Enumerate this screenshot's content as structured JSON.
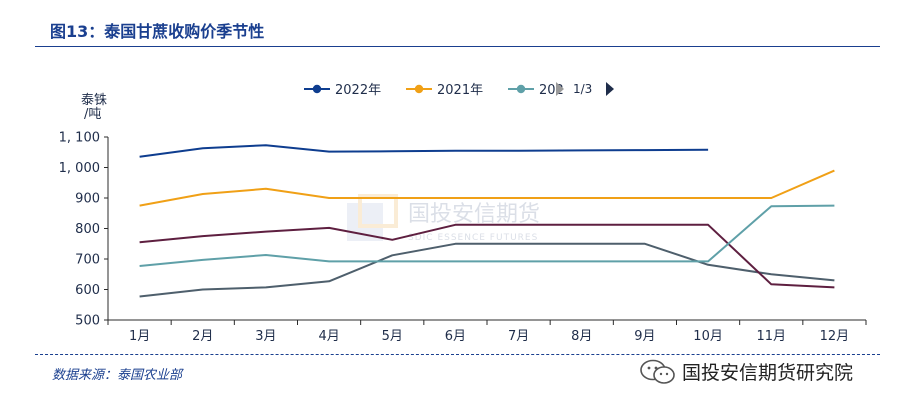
{
  "header": {
    "title": "图13：泰国甘蔗收购价季节性"
  },
  "footer": {
    "source": "数据来源：泰国农业部",
    "wechat_label": "国投安信期货研究院"
  },
  "watermark": {
    "cn": "国投安信期货",
    "en": "SDIC ESSENCE FUTURES"
  },
  "legend": {
    "page": "1/3"
  },
  "chart_data": {
    "type": "line",
    "ylabel": "泰铢/吨",
    "ylim": [
      500,
      1100
    ],
    "yticks": [
      "500",
      "600",
      "700",
      "800",
      "900",
      "1, 000",
      "1, 100"
    ],
    "categories": [
      "1月",
      "2月",
      "3月",
      "4月",
      "5月",
      "6月",
      "7月",
      "8月",
      "9月",
      "10月",
      "11月",
      "12月"
    ],
    "series": [
      {
        "name": "2022年",
        "color": "#0e3d8f",
        "values": [
          1035,
          1063,
          1073,
          1052,
          1053,
          1055,
          1055,
          1056,
          1057,
          1058,
          null,
          null
        ]
      },
      {
        "name": "2021年",
        "color": "#f0a016",
        "values": [
          875,
          913,
          930,
          900,
          900,
          900,
          900,
          900,
          900,
          900,
          900,
          990
        ]
      },
      {
        "name": "202",
        "color": "#5fa0a8",
        "values": [
          677,
          697,
          713,
          692,
          692,
          692,
          692,
          692,
          692,
          692,
          873,
          875
        ]
      },
      {
        "name": "",
        "color": "#5e1f40",
        "values": [
          755,
          775,
          790,
          802,
          763,
          812,
          812,
          812,
          812,
          812,
          617,
          607
        ]
      },
      {
        "name": "",
        "color": "#4e5f6c",
        "values": [
          577,
          600,
          607,
          627,
          712,
          750,
          750,
          750,
          750,
          681,
          650,
          630
        ]
      }
    ],
    "grid": false,
    "legend_position": "top-center"
  }
}
